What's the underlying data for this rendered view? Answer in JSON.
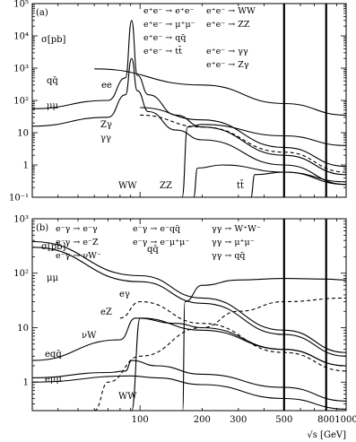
{
  "chart_data": [
    {
      "type": "line",
      "panel_label": "(a)",
      "ylabel": "σ[pb]",
      "xlabel": "",
      "yscale": "log",
      "xscale": "log",
      "ylim": [
        0.1,
        100000
      ],
      "yticks": [
        "10⁻¹",
        "1",
        "10",
        "10²",
        "10³",
        "10⁴",
        "10⁵"
      ],
      "xlim": [
        30,
        1000
      ],
      "vertical_lines_at": [
        500,
        800
      ],
      "legend": [
        "e⁺e⁻ → e⁺e⁻",
        "e⁺e⁻ → WW",
        "e⁺e⁻ → μ⁺μ⁻",
        "e⁺e⁻ → ZZ",
        "e⁺e⁻ → qq̄",
        "e⁺e⁻ → tt̄",
        "e⁺e⁻ → γγ",
        "e⁺e⁻ → Zγ"
      ],
      "series": [
        {
          "name": "ee",
          "style": "solid",
          "x": [
            60,
            200,
            500,
            1000
          ],
          "y": [
            950,
            300,
            80,
            35
          ]
        },
        {
          "name": "qq̄",
          "style": "solid",
          "x": [
            30,
            70,
            85,
            91,
            97,
            110,
            150,
            200,
            500,
            1000
          ],
          "y": [
            55,
            100,
            500,
            30000,
            600,
            150,
            35,
            15,
            2.0,
            0.5
          ]
        },
        {
          "name": "μμ",
          "style": "solid",
          "x": [
            30,
            70,
            85,
            91,
            97,
            110,
            150,
            200,
            500,
            1000
          ],
          "y": [
            16,
            30,
            150,
            2000,
            200,
            45,
            12,
            6,
            1.0,
            0.25
          ]
        },
        {
          "name": "Zγ",
          "style": "solid",
          "x": [
            100,
            200,
            500,
            1000
          ],
          "y": [
            60,
            25,
            3.5,
            0.9
          ]
        },
        {
          "name": "γγ",
          "style": "dashed",
          "x": [
            100,
            200,
            500,
            1000
          ],
          "y": [
            35,
            15,
            2.5,
            0.6
          ]
        },
        {
          "name": "WW",
          "style": "solid",
          "x": [
            160,
            170,
            200,
            500,
            1000
          ],
          "y": [
            0.1,
            15,
            18,
            8,
            4
          ]
        },
        {
          "name": "ZZ",
          "style": "solid",
          "x": [
            182,
            190,
            250,
            500,
            1000
          ],
          "y": [
            0.1,
            0.8,
            1.0,
            0.6,
            0.3
          ]
        },
        {
          "name": "tt̄",
          "style": "solid",
          "x": [
            345,
            360,
            500,
            1000
          ],
          "y": [
            0.1,
            0.5,
            0.6,
            0.25
          ]
        }
      ]
    },
    {
      "type": "line",
      "panel_label": "(b)",
      "ylabel": "σ[pb]",
      "xlabel": "√s [GeV]",
      "yscale": "log",
      "xscale": "log",
      "ylim": [
        0.3,
        1000
      ],
      "yticks": [
        "1",
        "10",
        "10²",
        "10³"
      ],
      "xlim": [
        30,
        1000
      ],
      "xticks": [
        "100",
        "200",
        "300",
        "500",
        "800",
        "1000"
      ],
      "vertical_lines_at": [
        500,
        800
      ],
      "legend": [
        "e⁻γ → e⁻γ",
        "e⁻γ → e⁻qq̄",
        "γγ → W⁺W⁻",
        "e⁻γ → e⁻Z",
        "e⁻γ → e⁻μ⁺μ⁻",
        "γγ → μ⁺μ⁻",
        "e⁻γ → νW⁻",
        "γγ → qq̄"
      ],
      "series": [
        {
          "name": "qq̄",
          "style": "solid",
          "x": [
            30,
            100,
            200,
            500,
            1000
          ],
          "y": [
            380,
            90,
            35,
            9,
            3.5
          ]
        },
        {
          "name": "μμ",
          "style": "solid",
          "x": [
            30,
            100,
            200,
            500,
            1000
          ],
          "y": [
            300,
            70,
            28,
            7.5,
            3
          ]
        },
        {
          "name": "eγ",
          "style": "dashed",
          "x": [
            80,
            100,
            200,
            500,
            1000
          ],
          "y": [
            15,
            30,
            12,
            3.5,
            1.6
          ]
        },
        {
          "name": "eZ",
          "style": "solid",
          "x": [
            91,
            100,
            200,
            500,
            1000
          ],
          "y": [
            0.3,
            15,
            9,
            4,
            2
          ]
        },
        {
          "name": "νW",
          "style": "solid",
          "x": [
            30,
            80,
            95,
            150,
            200,
            500,
            1000
          ],
          "y": [
            2.5,
            6,
            15,
            12,
            10,
            4,
            2
          ]
        },
        {
          "name": "eqq̄",
          "style": "solid",
          "x": [
            30,
            70,
            85,
            91,
            120,
            200,
            500,
            1000
          ],
          "y": [
            1.2,
            1.5,
            1.6,
            2.5,
            2.0,
            1.4,
            0.8,
            0.45
          ]
        },
        {
          "name": "eμμ",
          "style": "solid",
          "x": [
            30,
            90,
            120,
            200,
            500,
            1000
          ],
          "y": [
            1.0,
            1.3,
            1.2,
            0.9,
            0.5,
            0.32
          ]
        },
        {
          "name": "WW",
          "style": "solid",
          "x": [
            161,
            165,
            200,
            300,
            500,
            800,
            1000
          ],
          "y": [
            0.3,
            30,
            60,
            75,
            80,
            78,
            75
          ]
        },
        {
          "name": "γγ→W⁺W⁻",
          "style": "dashed",
          "x": [
            60,
            70,
            100,
            200,
            300,
            500,
            1000
          ],
          "y": [
            0.3,
            1.0,
            3,
            10,
            20,
            30,
            35
          ]
        }
      ]
    }
  ]
}
